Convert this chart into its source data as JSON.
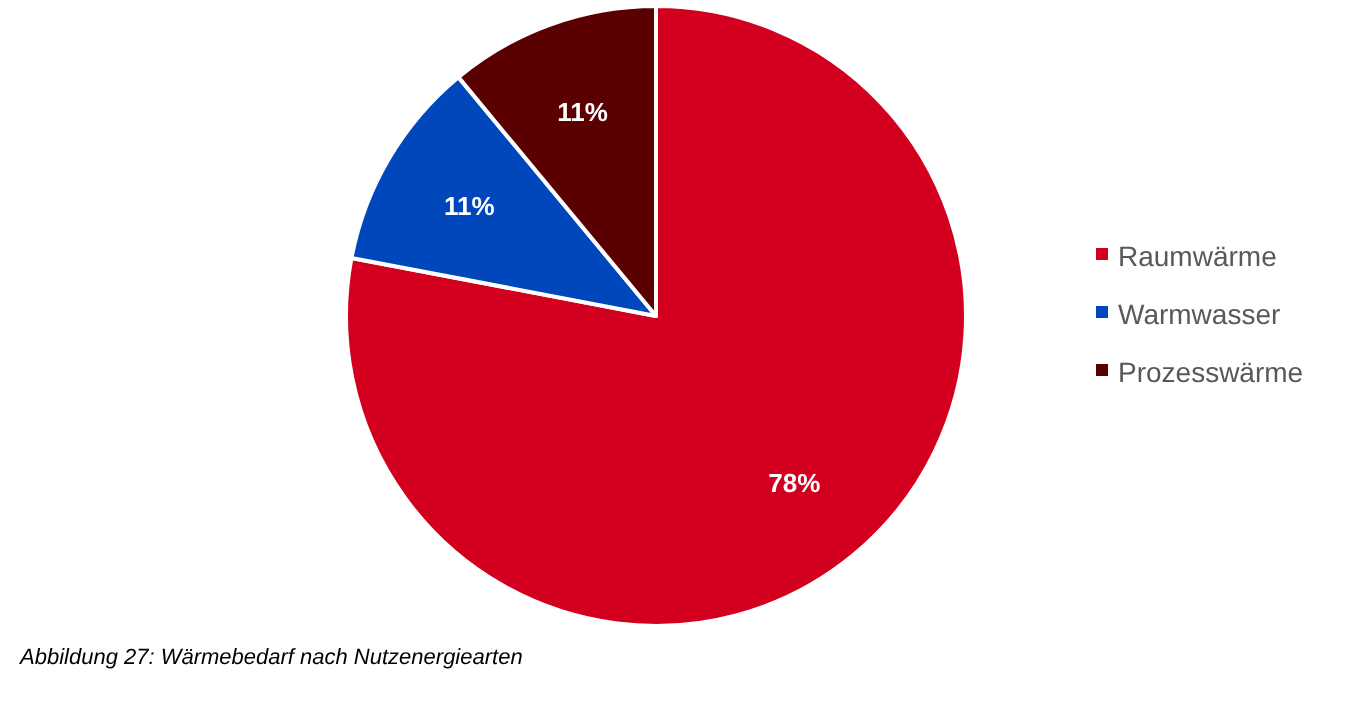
{
  "chart_data": {
    "type": "pie",
    "categories": [
      "Raumwärme",
      "Warmwasser",
      "Prozesswärme"
    ],
    "values": [
      78,
      11,
      11
    ],
    "colors": [
      "#d2001e",
      "#0047bb",
      "#5a0000"
    ],
    "value_labels": [
      "78%",
      "11%",
      "11%"
    ],
    "legend": "right",
    "annotations": [
      "Abbildung 27: Wärmebedarf nach Nutzenergiearten"
    ]
  }
}
